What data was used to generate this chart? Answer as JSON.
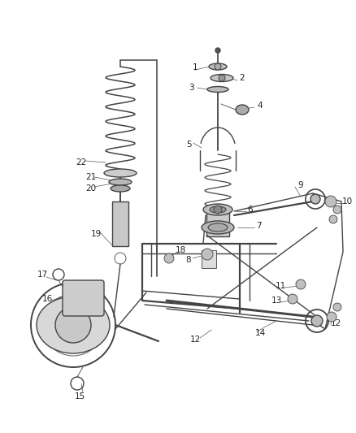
{
  "bg_color": "#ffffff",
  "line_color": "#444444",
  "label_color": "#222222",
  "fig_width": 4.38,
  "fig_height": 5.33,
  "dpi": 100,
  "font_size": 7.5,
  "lw_main": 1.0,
  "lw_thin": 0.6,
  "lw_thick": 1.6
}
